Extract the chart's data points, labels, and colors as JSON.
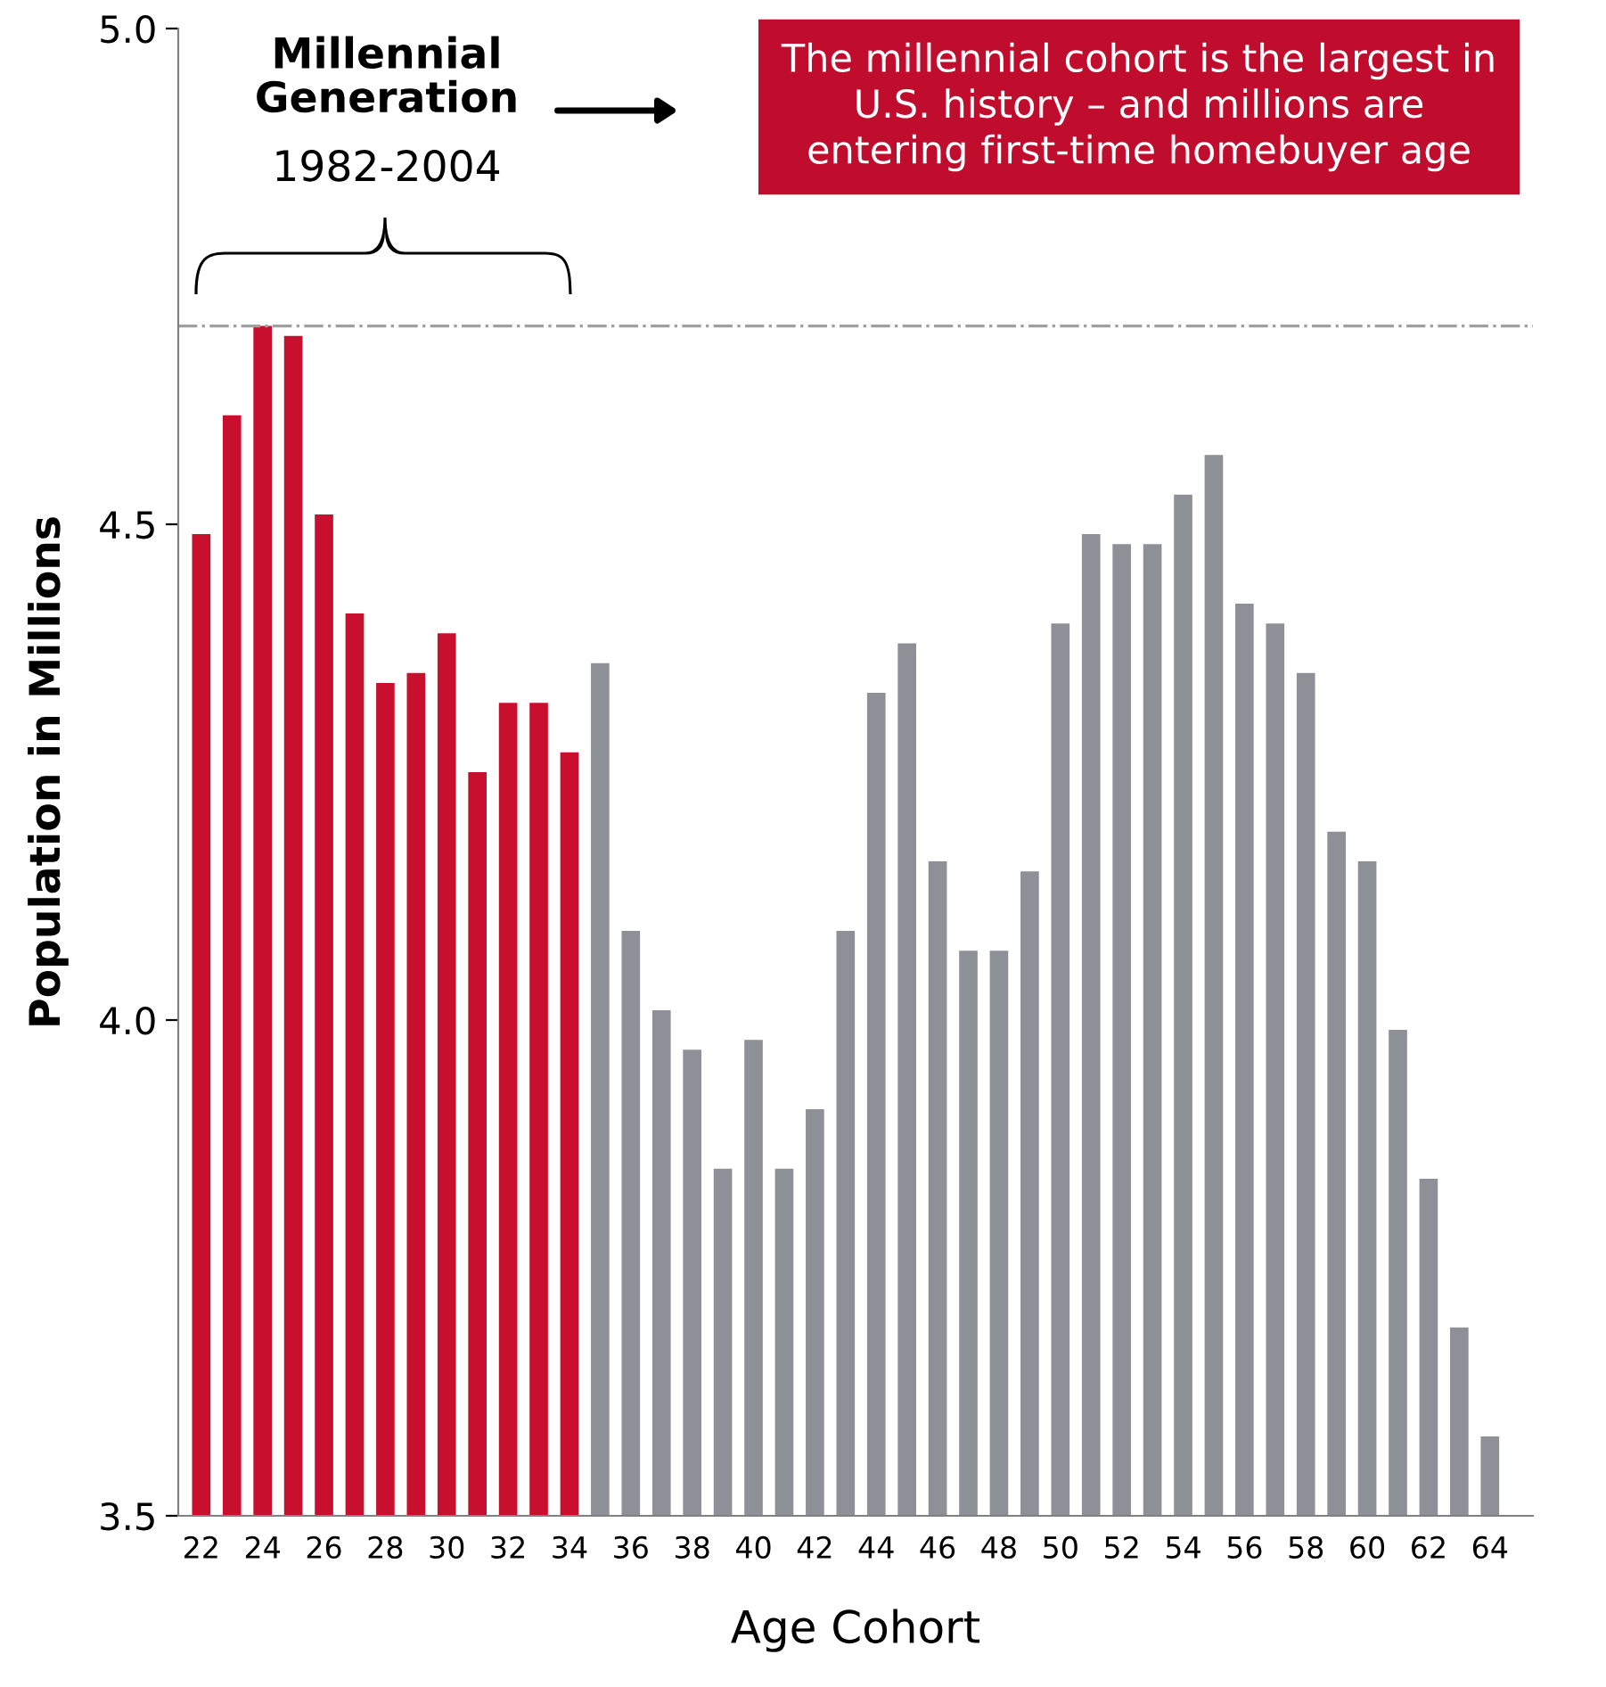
{
  "chart_data": {
    "type": "bar",
    "xlabel": "Age Cohort",
    "ylabel": "Population in Millions",
    "categories": [
      "22",
      null,
      "24",
      null,
      "26",
      null,
      "28",
      null,
      "30",
      null,
      "32",
      null,
      "34",
      null,
      "36",
      null,
      "38",
      null,
      "40",
      null,
      "42",
      null,
      "44",
      null,
      "46",
      null,
      "48",
      null,
      "50",
      null,
      "52",
      null,
      "54",
      null,
      "56",
      null,
      "58",
      null,
      "60",
      null,
      "62",
      null,
      "64"
    ],
    "values": [
      4.49,
      4.61,
      4.7,
      4.69,
      4.51,
      4.41,
      4.34,
      4.35,
      4.39,
      4.25,
      4.32,
      4.32,
      4.27,
      4.36,
      4.09,
      4.01,
      3.97,
      3.85,
      3.98,
      3.85,
      3.91,
      4.09,
      4.33,
      4.38,
      4.16,
      4.07,
      4.07,
      4.15,
      4.4,
      4.49,
      4.48,
      4.48,
      4.53,
      4.57,
      4.42,
      4.4,
      4.35,
      4.19,
      4.16,
      3.99,
      3.84,
      3.69,
      3.58
    ],
    "colors": [
      "#c8102e",
      "#c8102e",
      "#c8102e",
      "#c8102e",
      "#c8102e",
      "#c8102e",
      "#c8102e",
      "#c8102e",
      "#c8102e",
      "#c8102e",
      "#c8102e",
      "#c8102e",
      "#c8102e",
      "#8d9097",
      "#8d9097",
      "#8d9097",
      "#8d9097",
      "#8d9097",
      "#8d9097",
      "#8d9097",
      "#8d9097",
      "#8d9097",
      "#8d9097",
      "#8d9097",
      "#8d9097",
      "#8d9097",
      "#8d9097",
      "#8d9097",
      "#8d9097",
      "#8d9097",
      "#8d9097",
      "#8d9097",
      "#8d9097",
      "#8d9097",
      "#8d9097",
      "#8d9097",
      "#8d9097",
      "#8d9097",
      "#8d9097",
      "#8d9097",
      "#8d9097",
      "#8d9097",
      "#8d9097"
    ],
    "ylim": [
      3.5,
      5.0
    ],
    "yticks": [
      {
        "value": 3.5,
        "label": "3.5"
      },
      {
        "value": 4.0,
        "label": "4.0"
      },
      {
        "value": 4.5,
        "label": "4.5"
      },
      {
        "value": 5.0,
        "label": "5.0"
      }
    ],
    "ref_lines": [
      {
        "axis": "y",
        "value": 4.7,
        "label": null,
        "color": "#a0a0a0",
        "line_style": "dashdot"
      }
    ],
    "annotations": [
      "Millennial\nGeneration",
      "1982-2004",
      "The millennial cohort is the largest in\nU.S. history – and millions are\nentering first-time homebuyer age"
    ],
    "grid": false,
    "legend": false
  }
}
